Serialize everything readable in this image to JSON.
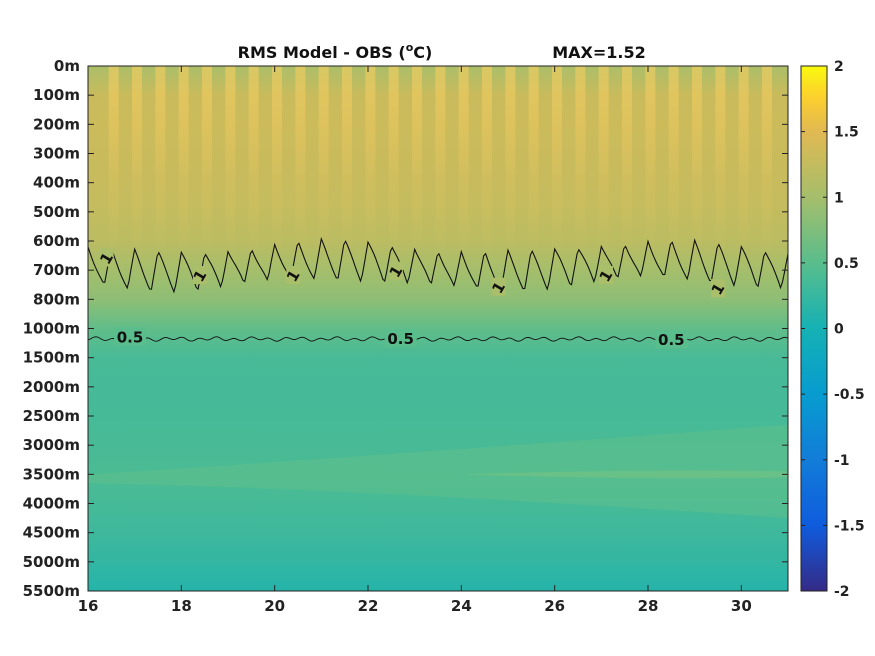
{
  "chart_data": {
    "type": "heatmap",
    "title": "RMS Model - OBS (",
    "title_unit_super": "o",
    "title_unit_tail": "C)",
    "max_label": "MAX=1.52",
    "xlim": [
      16,
      31
    ],
    "x_ticks": [
      16,
      18,
      20,
      22,
      24,
      26,
      28,
      30
    ],
    "x_tick_labels": [
      "16",
      "18",
      "20",
      "22",
      "24",
      "26",
      "28",
      "30"
    ],
    "y_tick_labels": [
      "0m",
      "100m",
      "200m",
      "300m",
      "400m",
      "500m",
      "600m",
      "700m",
      "800m",
      "1000m",
      "1500m",
      "2000m",
      "2500m",
      "3000m",
      "3500m",
      "4000m",
      "4500m",
      "5000m",
      "5500m"
    ],
    "depth_profile_m": [
      0,
      100,
      200,
      300,
      400,
      500,
      600,
      700,
      800,
      1000,
      1500,
      2000,
      2500,
      3000,
      3500,
      4000,
      4500,
      5000,
      5500
    ],
    "depth_profile_value": [
      1.05,
      1.3,
      1.32,
      1.3,
      1.28,
      1.25,
      1.18,
      1.0,
      0.85,
      0.55,
      0.38,
      0.35,
      0.36,
      0.38,
      0.4,
      0.36,
      0.3,
      0.22,
      0.12
    ],
    "colorbar": {
      "clim": [
        -2,
        2
      ],
      "ticks": [
        2,
        1.5,
        1,
        0.5,
        0,
        -0.5,
        -1,
        -1.5,
        -2
      ],
      "tick_labels": [
        "2",
        "1.5",
        "1",
        "0.5",
        "0",
        "-0.5",
        "-1",
        "-1.5",
        "-2"
      ],
      "colormap": "parula"
    },
    "contours": [
      {
        "level": 1,
        "level_labels": [
          "1",
          "1",
          "1",
          "1",
          "1",
          "1",
          "1"
        ],
        "label_x": [
          16.4,
          18.4,
          20.4,
          22.6,
          24.8,
          27.1,
          29.5
        ],
        "label_depth_m": [
          660,
          720,
          720,
          705,
          760,
          720,
          765
        ]
      },
      {
        "level": 0.5,
        "level_labels": [
          "0.5",
          "0.5",
          "0.5"
        ],
        "label_x": [
          16.9,
          22.7,
          28.5
        ],
        "label_depth_m": [
          1150,
          1180,
          1200
        ]
      }
    ]
  }
}
